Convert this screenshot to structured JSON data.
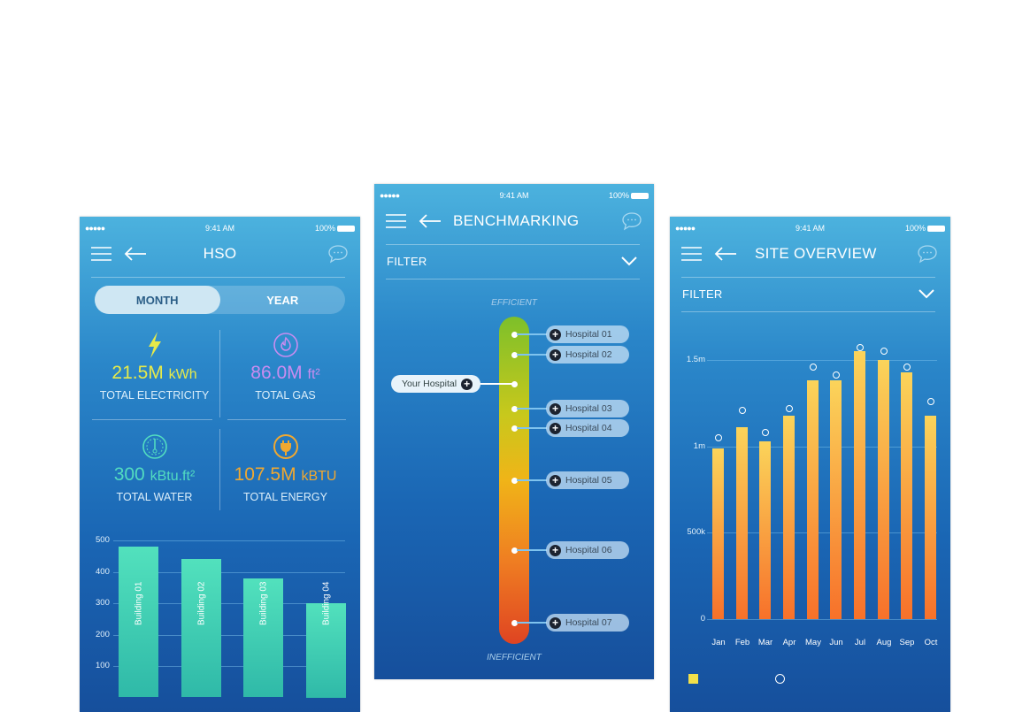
{
  "status_bar": {
    "signal": "●●●●●",
    "time": "9:41 AM",
    "battery": "100%"
  },
  "screens": {
    "hso": {
      "title": "HSO",
      "toggle": {
        "options": [
          "MONTH",
          "YEAR"
        ],
        "selected": "MONTH"
      },
      "tiles": [
        {
          "value": "21.5M",
          "unit": "kWh",
          "label": "TOTAL ELECTRICITY",
          "color": "#e6ea4a",
          "icon": "lightning-icon"
        },
        {
          "value": "86.0M",
          "unit": "ft²",
          "label": "TOTAL GAS",
          "color": "#c98cf0",
          "icon": "flame-icon"
        },
        {
          "value": "300",
          "unit": "kBtu.ft²",
          "label": "TOTAL WATER",
          "color": "#52dcc0",
          "icon": "gauge-icon"
        },
        {
          "value": "107.5M",
          "unit": "kBTU",
          "label": "TOTAL ENERGY",
          "color": "#f0a830",
          "icon": "plug-icon"
        }
      ]
    },
    "benchmarking": {
      "title": "BENCHMARKING",
      "filter": "FILTER",
      "top_label": "EFFICIENT",
      "bottom_label": "INEFFICIENT",
      "your_hospital": "Your Hospital",
      "hospitals": [
        "Hospital 01",
        "Hospital 02",
        "Hospital 03",
        "Hospital 04",
        "Hospital 05",
        "Hospital 06",
        "Hospital 07"
      ]
    },
    "site_overview": {
      "title": "SITE OVERVIEW",
      "filter": "FILTER"
    }
  },
  "chart_data": [
    {
      "type": "bar",
      "categories": [
        "Building 01",
        "Building 02",
        "Building 03",
        "Building 04"
      ],
      "values": [
        480,
        440,
        380,
        300
      ],
      "yticks": [
        "100",
        "200",
        "300",
        "400",
        "500"
      ],
      "ylim": [
        0,
        500
      ]
    },
    {
      "type": "bar",
      "categories": [
        "Jan",
        "Feb",
        "Mar",
        "Apr",
        "May",
        "Jun",
        "Jul",
        "Aug",
        "Sep",
        "Oct"
      ],
      "series": [
        {
          "values": [
            990000,
            1110000,
            1030000,
            1180000,
            1380000,
            1380000,
            1550000,
            1500000,
            1430000,
            1180000
          ]
        },
        {
          "type": "scatter",
          "values": [
            1030000,
            1190000,
            1060000,
            1200000,
            1440000,
            1390000,
            1550000,
            1530000,
            1440000,
            1240000
          ]
        }
      ],
      "yticks": [
        "0",
        "500k",
        "1m",
        "1.5m"
      ],
      "ylim": [
        0,
        1500000
      ],
      "colors": {
        "bar": "#f9a23a",
        "marker": "#ffffff"
      }
    }
  ]
}
